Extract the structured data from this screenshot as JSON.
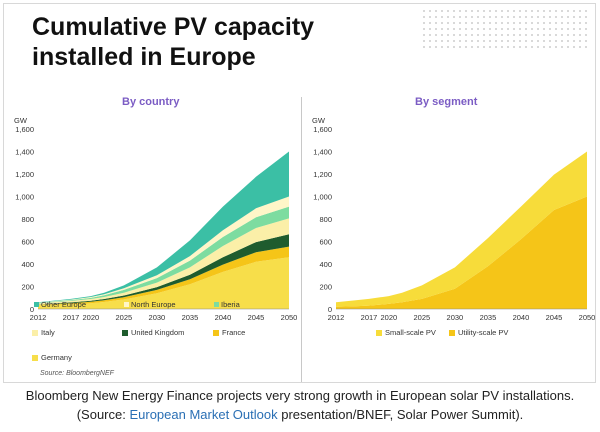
{
  "slide_title": "Cumulative PV capacity installed in Europe",
  "caption": {
    "before": "Bloomberg New Energy Finance projects very strong growth in European solar PV installations. (Source: ",
    "link": "European Market Outlook",
    "after": " presentation/BNEF, Solar Power Summit)."
  },
  "source": "Source: BloombergNEF",
  "colors": {
    "germany": "#f7de4a",
    "france": "#f5c518",
    "united_kingdom": "#1f5c2e",
    "italy": "#fbefa8",
    "iberia": "#7ddca0",
    "north_europe": "#fff6c8",
    "other_europe": "#3bbfa5",
    "small_scale": "#f7dc3a",
    "utility_scale": "#f5c518",
    "title_purple": "#7b5cc4"
  },
  "chart_data": [
    {
      "type": "area",
      "title": "By country",
      "ylabel": "GW",
      "ylim": [
        0,
        1600
      ],
      "yticks": [
        0,
        200,
        400,
        600,
        800,
        1000,
        1200,
        1400,
        1600
      ],
      "x": [
        2012,
        2015,
        2017,
        2020,
        2022,
        2025,
        2030,
        2035,
        2040,
        2045,
        2050
      ],
      "x_tick_labels": [
        "2012",
        "2017",
        "2020",
        "2025",
        "2030",
        "2035",
        "2040",
        "2045",
        "2050"
      ],
      "stacked": true,
      "series": [
        {
          "name": "Germany",
          "color": "#f7de4a",
          "values": [
            33,
            40,
            43,
            52,
            62,
            85,
            140,
            220,
            330,
            420,
            460
          ]
        },
        {
          "name": "France",
          "color": "#f5c518",
          "values": [
            4,
            6,
            8,
            12,
            15,
            20,
            30,
            45,
            65,
            85,
            95
          ]
        },
        {
          "name": "United Kingdom",
          "color": "#1f5c2e",
          "values": [
            2,
            5,
            8,
            10,
            12,
            15,
            25,
            40,
            65,
            90,
            110
          ]
        },
        {
          "name": "Italy",
          "color": "#fbefa8",
          "values": [
            10,
            12,
            13,
            15,
            18,
            25,
            40,
            65,
            100,
            125,
            140
          ]
        },
        {
          "name": "Iberia",
          "color": "#7ddca0",
          "values": [
            5,
            6,
            7,
            10,
            15,
            25,
            40,
            60,
            80,
            95,
            105
          ]
        },
        {
          "name": "North Europe",
          "color": "#fff6c8",
          "values": [
            3,
            4,
            5,
            8,
            10,
            15,
            25,
            40,
            60,
            80,
            90
          ]
        },
        {
          "name": "Other Europe",
          "color": "#3bbfa5",
          "values": [
            3,
            5,
            6,
            8,
            13,
            25,
            70,
            140,
            210,
            280,
            400
          ]
        }
      ],
      "legend": [
        "Other Europe",
        "North Europe",
        "Iberia",
        "Italy",
        "United Kingdom",
        "France",
        "Germany"
      ]
    },
    {
      "type": "area",
      "title": "By segment",
      "ylabel": "GW",
      "ylim": [
        0,
        1600
      ],
      "yticks": [
        0,
        200,
        400,
        600,
        800,
        1000,
        1200,
        1400,
        1600
      ],
      "x": [
        2012,
        2015,
        2017,
        2020,
        2022,
        2025,
        2030,
        2035,
        2040,
        2045,
        2050
      ],
      "x_tick_labels": [
        "2012",
        "2017",
        "2020",
        "2025",
        "2030",
        "2035",
        "2040",
        "2045",
        "2050"
      ],
      "stacked": true,
      "series": [
        {
          "name": "Utility-scale PV",
          "color": "#f5c518",
          "values": [
            20,
            25,
            30,
            45,
            60,
            90,
            180,
            380,
            620,
            880,
            1000
          ]
        },
        {
          "name": "Small-scale PV",
          "color": "#f7dc3a",
          "values": [
            40,
            53,
            60,
            70,
            85,
            120,
            190,
            250,
            290,
            315,
            400
          ]
        }
      ],
      "legend": [
        "Small-scale PV",
        "Utility-scale PV"
      ]
    }
  ],
  "legend_labels": {
    "other_europe": "Other Europe",
    "north_europe": "North Europe",
    "iberia": "Iberia",
    "italy": "Italy",
    "united_kingdom": "United Kingdom",
    "france": "France",
    "germany": "Germany",
    "small_scale": "Small-scale PV",
    "utility_scale": "Utility-scale PV"
  }
}
